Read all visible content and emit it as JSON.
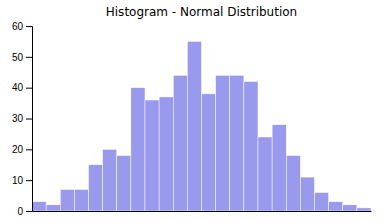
{
  "chart_data": {
    "type": "bar",
    "title": "Histogram - Normal Distribution",
    "categories": [
      null,
      null,
      null,
      null,
      null,
      null,
      null,
      null,
      null,
      null,
      null,
      null,
      null,
      null,
      null,
      null,
      null,
      null,
      null,
      null,
      null,
      null,
      null,
      null
    ],
    "values": [
      3,
      2,
      7,
      7,
      15,
      20,
      18,
      40,
      36,
      37,
      44,
      55,
      38,
      44,
      44,
      42,
      24,
      28,
      18,
      11,
      6,
      3,
      2,
      1
    ],
    "color": "#9999ee",
    "ylim": [
      0,
      60
    ],
    "yticks": [
      0,
      10,
      20,
      30,
      40,
      50,
      60
    ],
    "grid": false,
    "tick_labels": "y"
  }
}
